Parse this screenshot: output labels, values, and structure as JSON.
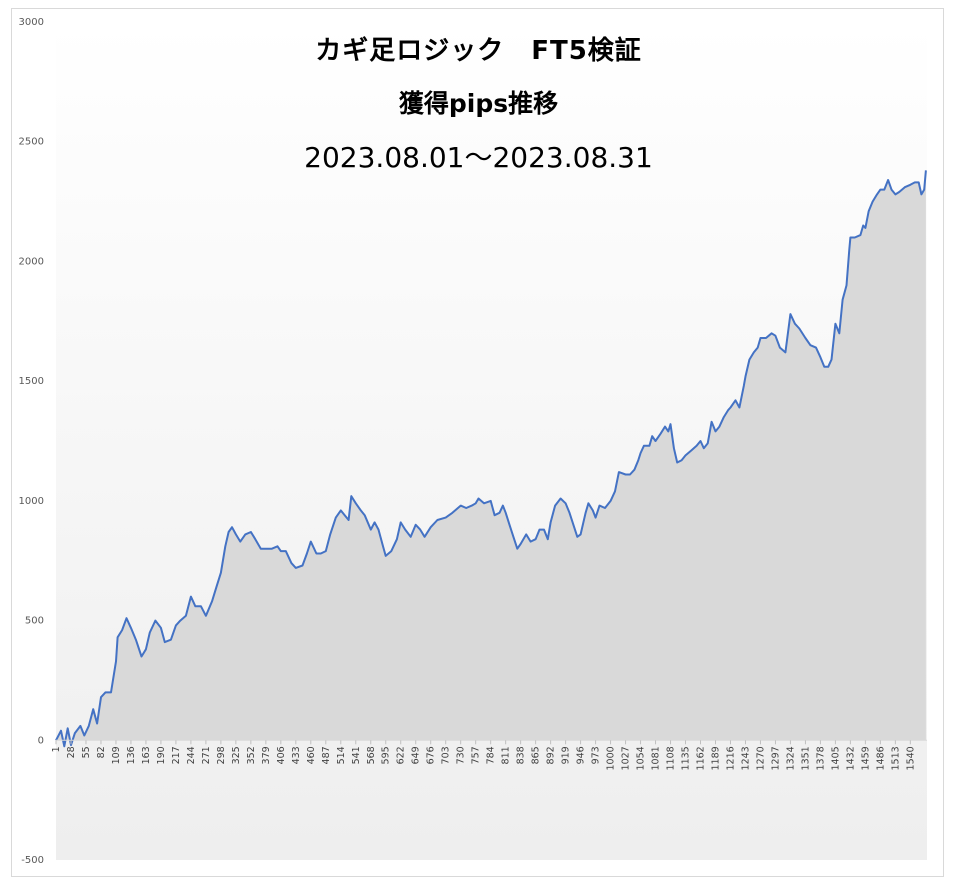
{
  "chart_data": {
    "type": "area",
    "title_lines": [
      "カギ足ロジック　FT5検証",
      "獲得pips推移",
      "2023.08.01～2023.08.31"
    ],
    "ylim": [
      -500,
      3000
    ],
    "yticks": [
      -500,
      0,
      500,
      1000,
      1500,
      2000,
      2500,
      3000
    ],
    "x_tick_labels": [
      "1",
      "28",
      "55",
      "82",
      "109",
      "136",
      "163",
      "190",
      "217",
      "244",
      "271",
      "298",
      "325",
      "352",
      "379",
      "406",
      "433",
      "460",
      "487",
      "514",
      "541",
      "568",
      "595",
      "622",
      "649",
      "676",
      "703",
      "730",
      "757",
      "784",
      "811",
      "838",
      "865",
      "892",
      "919",
      "946",
      "973",
      "1000",
      "1027",
      "1054",
      "1081",
      "1108",
      "1135",
      "1162",
      "1189",
      "1216",
      "1243",
      "1270",
      "1297",
      "1324",
      "1351",
      "1378",
      "1405",
      "1432",
      "1459",
      "1486",
      "1513",
      "1540"
    ],
    "x_range": [
      1,
      1570
    ],
    "grid": false,
    "series": [
      {
        "line_color": "#4472c4",
        "fill_color": "#d9d9d9",
        "points": [
          [
            1,
            0
          ],
          [
            10,
            40
          ],
          [
            16,
            -25
          ],
          [
            22,
            50
          ],
          [
            28,
            -20
          ],
          [
            35,
            30
          ],
          [
            45,
            60
          ],
          [
            52,
            20
          ],
          [
            60,
            60
          ],
          [
            68,
            130
          ],
          [
            75,
            70
          ],
          [
            82,
            180
          ],
          [
            90,
            200
          ],
          [
            100,
            200
          ],
          [
            109,
            330
          ],
          [
            112,
            430
          ],
          [
            120,
            460
          ],
          [
            128,
            510
          ],
          [
            136,
            470
          ],
          [
            145,
            420
          ],
          [
            155,
            350
          ],
          [
            163,
            380
          ],
          [
            170,
            450
          ],
          [
            180,
            500
          ],
          [
            190,
            470
          ],
          [
            197,
            410
          ],
          [
            208,
            420
          ],
          [
            217,
            480
          ],
          [
            225,
            500
          ],
          [
            235,
            520
          ],
          [
            244,
            600
          ],
          [
            252,
            560
          ],
          [
            262,
            560
          ],
          [
            271,
            520
          ],
          [
            282,
            580
          ],
          [
            290,
            640
          ],
          [
            298,
            700
          ],
          [
            306,
            810
          ],
          [
            312,
            870
          ],
          [
            318,
            890
          ],
          [
            325,
            860
          ],
          [
            333,
            830
          ],
          [
            342,
            860
          ],
          [
            352,
            870
          ],
          [
            360,
            840
          ],
          [
            370,
            800
          ],
          [
            379,
            800
          ],
          [
            390,
            800
          ],
          [
            400,
            810
          ],
          [
            406,
            790
          ],
          [
            415,
            790
          ],
          [
            425,
            740
          ],
          [
            433,
            720
          ],
          [
            445,
            730
          ],
          [
            453,
            780
          ],
          [
            460,
            830
          ],
          [
            470,
            780
          ],
          [
            478,
            780
          ],
          [
            487,
            790
          ],
          [
            495,
            860
          ],
          [
            505,
            930
          ],
          [
            514,
            960
          ],
          [
            521,
            940
          ],
          [
            528,
            920
          ],
          [
            533,
            1020
          ],
          [
            541,
            990
          ],
          [
            550,
            960
          ],
          [
            557,
            940
          ],
          [
            568,
            880
          ],
          [
            575,
            910
          ],
          [
            582,
            880
          ],
          [
            590,
            810
          ],
          [
            595,
            770
          ],
          [
            605,
            790
          ],
          [
            615,
            840
          ],
          [
            622,
            910
          ],
          [
            630,
            880
          ],
          [
            640,
            850
          ],
          [
            649,
            900
          ],
          [
            657,
            880
          ],
          [
            665,
            850
          ],
          [
            676,
            890
          ],
          [
            688,
            920
          ],
          [
            703,
            930
          ],
          [
            715,
            950
          ],
          [
            730,
            980
          ],
          [
            740,
            970
          ],
          [
            750,
            980
          ],
          [
            757,
            990
          ],
          [
            762,
            1010
          ],
          [
            772,
            990
          ],
          [
            784,
            1000
          ],
          [
            791,
            940
          ],
          [
            800,
            950
          ],
          [
            806,
            980
          ],
          [
            811,
            950
          ],
          [
            818,
            900
          ],
          [
            825,
            850
          ],
          [
            832,
            800
          ],
          [
            838,
            820
          ],
          [
            848,
            860
          ],
          [
            856,
            830
          ],
          [
            865,
            840
          ],
          [
            872,
            880
          ],
          [
            880,
            880
          ],
          [
            887,
            840
          ],
          [
            892,
            910
          ],
          [
            900,
            980
          ],
          [
            910,
            1010
          ],
          [
            919,
            990
          ],
          [
            926,
            950
          ],
          [
            933,
            900
          ],
          [
            940,
            850
          ],
          [
            946,
            860
          ],
          [
            955,
            950
          ],
          [
            960,
            990
          ],
          [
            968,
            960
          ],
          [
            973,
            930
          ],
          [
            980,
            980
          ],
          [
            990,
            970
          ],
          [
            1000,
            1000
          ],
          [
            1008,
            1040
          ],
          [
            1015,
            1120
          ],
          [
            1027,
            1110
          ],
          [
            1035,
            1110
          ],
          [
            1043,
            1130
          ],
          [
            1050,
            1170
          ],
          [
            1054,
            1200
          ],
          [
            1060,
            1230
          ],
          [
            1070,
            1230
          ],
          [
            1075,
            1270
          ],
          [
            1081,
            1250
          ],
          [
            1090,
            1280
          ],
          [
            1098,
            1310
          ],
          [
            1104,
            1290
          ],
          [
            1108,
            1320
          ],
          [
            1114,
            1220
          ],
          [
            1120,
            1160
          ],
          [
            1128,
            1170
          ],
          [
            1135,
            1190
          ],
          [
            1145,
            1210
          ],
          [
            1155,
            1230
          ],
          [
            1162,
            1250
          ],
          [
            1168,
            1220
          ],
          [
            1175,
            1240
          ],
          [
            1182,
            1330
          ],
          [
            1189,
            1290
          ],
          [
            1196,
            1310
          ],
          [
            1204,
            1350
          ],
          [
            1212,
            1380
          ],
          [
            1216,
            1390
          ],
          [
            1225,
            1420
          ],
          [
            1232,
            1390
          ],
          [
            1240,
            1480
          ],
          [
            1243,
            1520
          ],
          [
            1250,
            1590
          ],
          [
            1258,
            1620
          ],
          [
            1265,
            1640
          ],
          [
            1270,
            1680
          ],
          [
            1280,
            1680
          ],
          [
            1290,
            1700
          ],
          [
            1297,
            1690
          ],
          [
            1305,
            1640
          ],
          [
            1315,
            1620
          ],
          [
            1324,
            1780
          ],
          [
            1332,
            1740
          ],
          [
            1340,
            1720
          ],
          [
            1351,
            1680
          ],
          [
            1360,
            1650
          ],
          [
            1370,
            1640
          ],
          [
            1378,
            1600
          ],
          [
            1385,
            1560
          ],
          [
            1392,
            1560
          ],
          [
            1398,
            1590
          ],
          [
            1405,
            1740
          ],
          [
            1412,
            1700
          ],
          [
            1418,
            1840
          ],
          [
            1425,
            1900
          ],
          [
            1430,
            2050
          ],
          [
            1432,
            2100
          ],
          [
            1440,
            2100
          ],
          [
            1450,
            2110
          ],
          [
            1455,
            2150
          ],
          [
            1459,
            2140
          ],
          [
            1465,
            2210
          ],
          [
            1472,
            2250
          ],
          [
            1480,
            2280
          ],
          [
            1486,
            2300
          ],
          [
            1493,
            2300
          ],
          [
            1500,
            2340
          ],
          [
            1506,
            2300
          ],
          [
            1513,
            2280
          ],
          [
            1520,
            2290
          ],
          [
            1530,
            2310
          ],
          [
            1540,
            2320
          ],
          [
            1548,
            2330
          ],
          [
            1555,
            2330
          ],
          [
            1560,
            2280
          ],
          [
            1565,
            2300
          ],
          [
            1568,
            2380
          ]
        ]
      }
    ]
  }
}
